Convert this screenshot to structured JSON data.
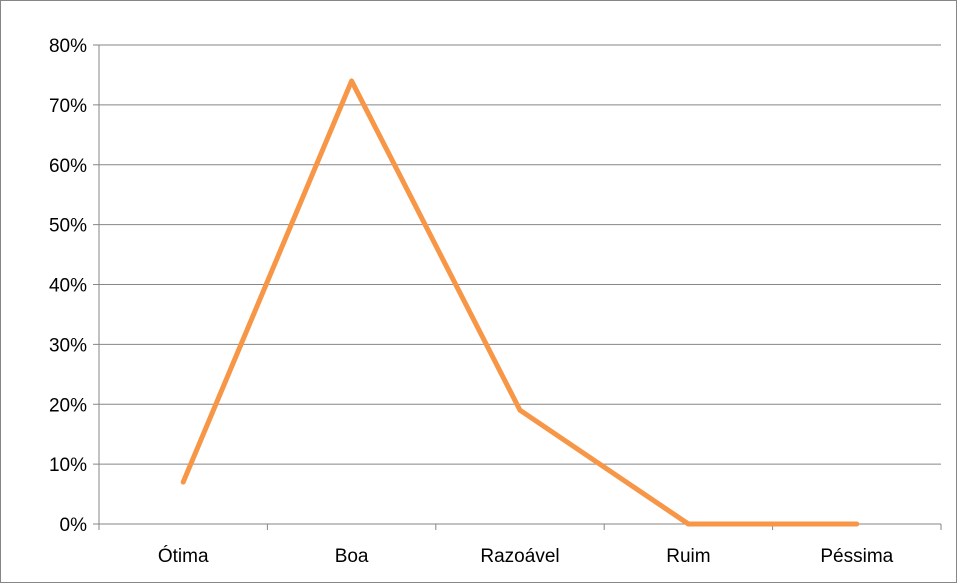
{
  "chart_data": {
    "type": "line",
    "categories": [
      "Ótima",
      "Boa",
      "Razoável",
      "Ruim",
      "Péssima"
    ],
    "series": [
      {
        "values": [
          7,
          74,
          19,
          0,
          0
        ],
        "color": "#F79646"
      }
    ],
    "y_ticks": [
      "0%",
      "10%",
      "20%",
      "30%",
      "40%",
      "50%",
      "60%",
      "70%",
      "80%"
    ],
    "ylim": [
      0,
      80
    ],
    "y_unit": "%",
    "grid": "horizontal",
    "legend": "none",
    "colors": {
      "gridline": "#868686",
      "axis": "#868686",
      "border": "#868686"
    }
  }
}
